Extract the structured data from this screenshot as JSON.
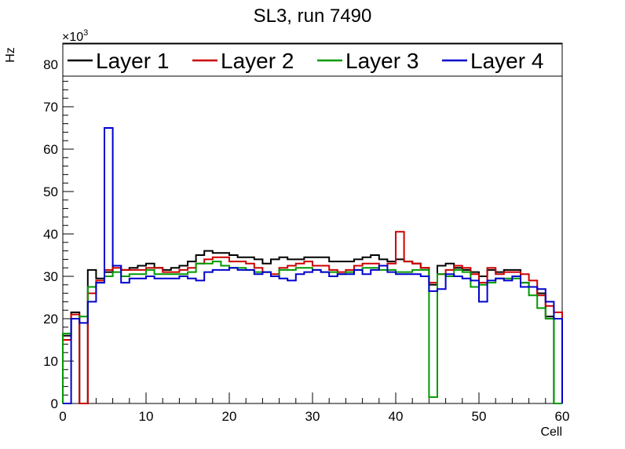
{
  "chart_data": {
    "type": "line",
    "title": "SL3, run 7490",
    "xlabel": "Cell",
    "ylabel": "Hz",
    "y_multiplier_label": "×10",
    "y_multiplier_exp": "3",
    "xlim": [
      0,
      60
    ],
    "ylim": [
      0,
      85
    ],
    "x_ticks": [
      0,
      10,
      20,
      30,
      40,
      50,
      60
    ],
    "y_ticks": [
      0,
      10,
      20,
      30,
      40,
      50,
      60,
      70,
      80
    ],
    "legend_position": "top",
    "x_bin_edges_start": 0,
    "bin_width": 1,
    "series": [
      {
        "name": "Layer 1",
        "color": "#000000",
        "values": [
          16,
          21.5,
          0,
          31.5,
          29.5,
          31,
          32.5,
          31.5,
          32,
          32.5,
          33,
          32,
          31.5,
          32,
          32.5,
          33.5,
          35,
          36,
          35.5,
          35.5,
          35,
          34.5,
          34.5,
          34,
          33,
          34,
          34.5,
          34,
          34,
          34.5,
          34.5,
          34.5,
          33.5,
          33.5,
          33.5,
          34,
          34.5,
          35,
          34,
          33.5,
          34,
          33.5,
          33,
          32,
          28,
          32.5,
          33,
          32,
          31.5,
          31,
          30,
          31.5,
          31,
          31.5,
          31.5,
          28.5,
          27.5,
          26,
          20.5,
          0
        ]
      },
      {
        "name": "Layer 2",
        "color": "#cc0000",
        "values": [
          15,
          21,
          0,
          26,
          29,
          31.5,
          32,
          31.5,
          31.5,
          31.5,
          32,
          32,
          31,
          31,
          31.5,
          32,
          33,
          34,
          34.5,
          34.5,
          33.5,
          33.5,
          33,
          32,
          31,
          30.5,
          32,
          32.5,
          33,
          33.5,
          32.5,
          32.5,
          31.5,
          31,
          31.5,
          32.5,
          33,
          33,
          32.5,
          33,
          40.5,
          33.5,
          33,
          32,
          28.5,
          30.5,
          31.5,
          32.5,
          32,
          30.5,
          28.5,
          32,
          30.5,
          31,
          31,
          30.5,
          29,
          25.5,
          23,
          21.5
        ]
      },
      {
        "name": "Layer 3",
        "color": "#009900",
        "values": [
          16.5,
          20,
          20.5,
          27.5,
          28.5,
          30,
          31,
          30,
          30.5,
          30.5,
          31.5,
          30.5,
          30.5,
          30.5,
          30.5,
          31,
          33,
          33,
          33.5,
          32.5,
          32,
          32,
          31.5,
          31,
          31,
          30,
          31.5,
          31.5,
          32,
          32,
          31.5,
          31,
          31,
          30.5,
          31,
          31.5,
          32,
          32,
          31.5,
          31.5,
          31,
          31,
          31.5,
          31.5,
          1.5,
          30.5,
          30,
          31.5,
          31,
          27.5,
          28,
          28.5,
          29.5,
          29.5,
          29.5,
          28.5,
          25.5,
          22.5,
          20,
          0
        ]
      },
      {
        "name": "Layer 4",
        "color": "#0000cc",
        "values": [
          0,
          20,
          19,
          24,
          28.5,
          65,
          32.5,
          28.5,
          29.5,
          29.5,
          30,
          29.5,
          29.5,
          29.5,
          30,
          29.5,
          29,
          31,
          31.5,
          31.5,
          32,
          31.5,
          31.5,
          30.5,
          31,
          30,
          29.5,
          29,
          30.5,
          31,
          31.5,
          31,
          30,
          30.5,
          30.5,
          31.5,
          30.5,
          31.5,
          32.5,
          31,
          30.5,
          30.5,
          30.5,
          30,
          26.5,
          27,
          30.5,
          30,
          29.5,
          29,
          24,
          29,
          29.5,
          29,
          30,
          27.5,
          27.5,
          27,
          24,
          20
        ]
      }
    ]
  }
}
